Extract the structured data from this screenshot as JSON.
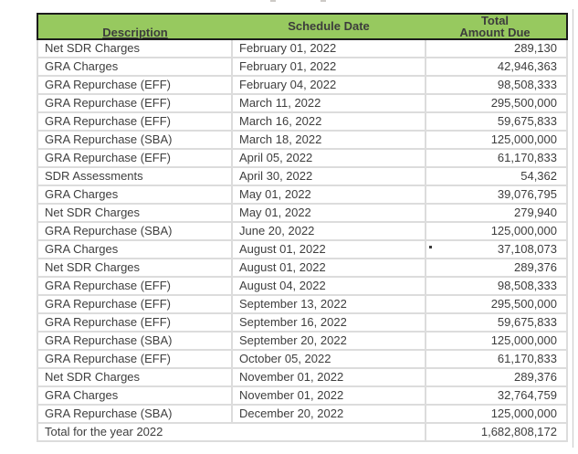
{
  "theme": {
    "header_background": "#97c95f",
    "header_border": "#1b1b1b",
    "grid_line": "#dcdcdc",
    "text_color": "#3e3e3e",
    "page_background": "#ffffff"
  },
  "table": {
    "columns": [
      {
        "label": "Description",
        "sortable": true
      },
      {
        "label": "Schedule Date",
        "sortable": false
      },
      {
        "label": "Total\nAmount Due",
        "sortable": false
      }
    ],
    "rows": [
      {
        "description": "Net SDR Charges",
        "date": "February 01, 2022",
        "amount": "289,130"
      },
      {
        "description": "GRA Charges",
        "date": "February 01, 2022",
        "amount": "42,946,363"
      },
      {
        "description": "GRA Repurchase (EFF)",
        "date": "February 04, 2022",
        "amount": "98,508,333"
      },
      {
        "description": "GRA Repurchase (EFF)",
        "date": "March 11, 2022",
        "amount": "295,500,000"
      },
      {
        "description": "GRA Repurchase (EFF)",
        "date": "March 16, 2022",
        "amount": "59,675,833"
      },
      {
        "description": "GRA Repurchase (SBA)",
        "date": "March 18, 2022",
        "amount": "125,000,000"
      },
      {
        "description": "GRA Repurchase (EFF)",
        "date": "April 05, 2022",
        "amount": "61,170,833"
      },
      {
        "description": "SDR Assessments",
        "date": "April 30, 2022",
        "amount": "54,362"
      },
      {
        "description": "GRA Charges",
        "date": "May 01, 2022",
        "amount": "39,076,795"
      },
      {
        "description": "Net SDR Charges",
        "date": "May 01, 2022",
        "amount": "279,940"
      },
      {
        "description": "GRA Repurchase (SBA)",
        "date": "June 20, 2022",
        "amount": "125,000,000"
      },
      {
        "description": "GRA Charges",
        "date": "August 01, 2022",
        "amount": "37,108,073"
      },
      {
        "description": "Net SDR Charges",
        "date": "August 01, 2022",
        "amount": "289,376"
      },
      {
        "description": "GRA Repurchase (EFF)",
        "date": "August 04, 2022",
        "amount": "98,508,333"
      },
      {
        "description": "GRA Repurchase (EFF)",
        "date": "September 13, 2022",
        "amount": "295,500,000"
      },
      {
        "description": "GRA Repurchase (EFF)",
        "date": "September 16, 2022",
        "amount": "59,675,833"
      },
      {
        "description": "GRA Repurchase (SBA)",
        "date": "September 20, 2022",
        "amount": "125,000,000"
      },
      {
        "description": "GRA Repurchase (EFF)",
        "date": "October 05, 2022",
        "amount": "61,170,833"
      },
      {
        "description": "Net SDR Charges",
        "date": "November 01, 2022",
        "amount": "289,376"
      },
      {
        "description": "GRA Charges",
        "date": "November 01, 2022",
        "amount": "32,764,759"
      },
      {
        "description": "GRA Repurchase (SBA)",
        "date": "December 20, 2022",
        "amount": "125,000,000"
      }
    ],
    "total_row": {
      "label": "Total for the year 2022",
      "amount": "1,682,808,172"
    }
  }
}
